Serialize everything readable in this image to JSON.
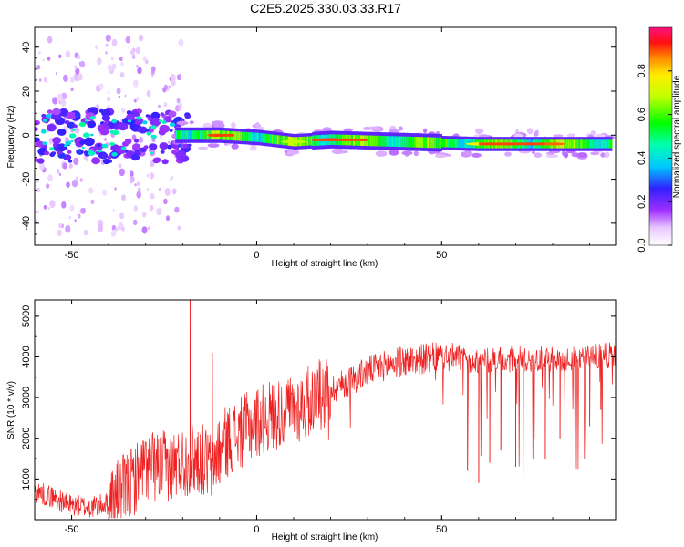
{
  "title": "C2E5.2025.330.03.33.R17",
  "chart_data": [
    {
      "type": "heatmap",
      "xlabel": "Height of straight line (km)",
      "ylabel": "Frequency (Hz)",
      "xlim": [
        -60,
        97
      ],
      "ylim": [
        -50,
        49
      ],
      "xticks": [
        -50,
        0,
        50
      ],
      "yticks": [
        -40,
        -20,
        0,
        20,
        40
      ],
      "colorbar": {
        "label": "Normalized spectral amplitude",
        "range": [
          0.0,
          1.0
        ],
        "ticks": [
          0.0,
          0.2,
          0.4,
          0.6,
          0.8
        ]
      },
      "ridge": [
        {
          "x": -20,
          "y": 0,
          "amp": 0.35
        },
        {
          "x": -10,
          "y": 0,
          "amp": 0.8
        },
        {
          "x": 0,
          "y": -1,
          "amp": 0.5
        },
        {
          "x": 10,
          "y": -3,
          "amp": 0.6
        },
        {
          "x": 20,
          "y": -2,
          "amp": 0.9
        },
        {
          "x": 40,
          "y": -3,
          "amp": 0.5
        },
        {
          "x": 60,
          "y": -4,
          "amp": 0.7
        },
        {
          "x": 80,
          "y": -4,
          "amp": 0.8
        },
        {
          "x": 95,
          "y": -4,
          "amp": 0.35
        }
      ],
      "scatter_clusters": [
        {
          "x_range": [
            -60,
            -20
          ],
          "y_range": [
            -10,
            10
          ],
          "amp": 0.25
        },
        {
          "x_range": [
            -60,
            -40
          ],
          "y_range": [
            -45,
            45
          ],
          "amp": 0.05
        }
      ]
    },
    {
      "type": "line",
      "xlabel": "Height of straight line (km)",
      "ylabel": "SNR (10 * v/v)",
      "xlim": [
        -60,
        97
      ],
      "ylim": [
        0,
        5400
      ],
      "xticks": [
        -50,
        0,
        50
      ],
      "yticks": [
        1000,
        2000,
        3000,
        4000,
        5000
      ],
      "series_color": "#ee2222",
      "envelope_x": [
        -60,
        -55,
        -50,
        -45,
        -40,
        -35,
        -30,
        -25,
        -20,
        -18,
        -15,
        -12,
        -10,
        -5,
        0,
        5,
        10,
        15,
        20,
        25,
        30,
        35,
        40,
        45,
        50,
        55,
        60,
        65,
        70,
        75,
        80,
        85,
        90,
        97
      ],
      "envelope_y": [
        700,
        550,
        350,
        300,
        400,
        800,
        1300,
        1300,
        1400,
        1500,
        1500,
        1300,
        1800,
        2100,
        2400,
        2600,
        2700,
        2950,
        3200,
        3400,
        3650,
        3800,
        3900,
        3950,
        4000,
        3950,
        3900,
        3900,
        3950,
        3950,
        3950,
        3950,
        4000,
        4050
      ],
      "spikes": [
        {
          "x": -18,
          "y": 5400
        },
        {
          "x": -12,
          "y": 4100
        },
        {
          "x": -10,
          "y": 900
        },
        {
          "x": 57,
          "y": 1200
        },
        {
          "x": 60,
          "y": 900
        },
        {
          "x": 63,
          "y": 1400
        },
        {
          "x": 66,
          "y": 1700
        },
        {
          "x": 70,
          "y": 1300
        },
        {
          "x": 72,
          "y": 900
        },
        {
          "x": 75,
          "y": 2000
        },
        {
          "x": 78,
          "y": 1500
        },
        {
          "x": 82,
          "y": 2000
        },
        {
          "x": 86,
          "y": 2200
        },
        {
          "x": 90,
          "y": 2300
        },
        {
          "x": 93,
          "y": 2700
        }
      ]
    }
  ]
}
